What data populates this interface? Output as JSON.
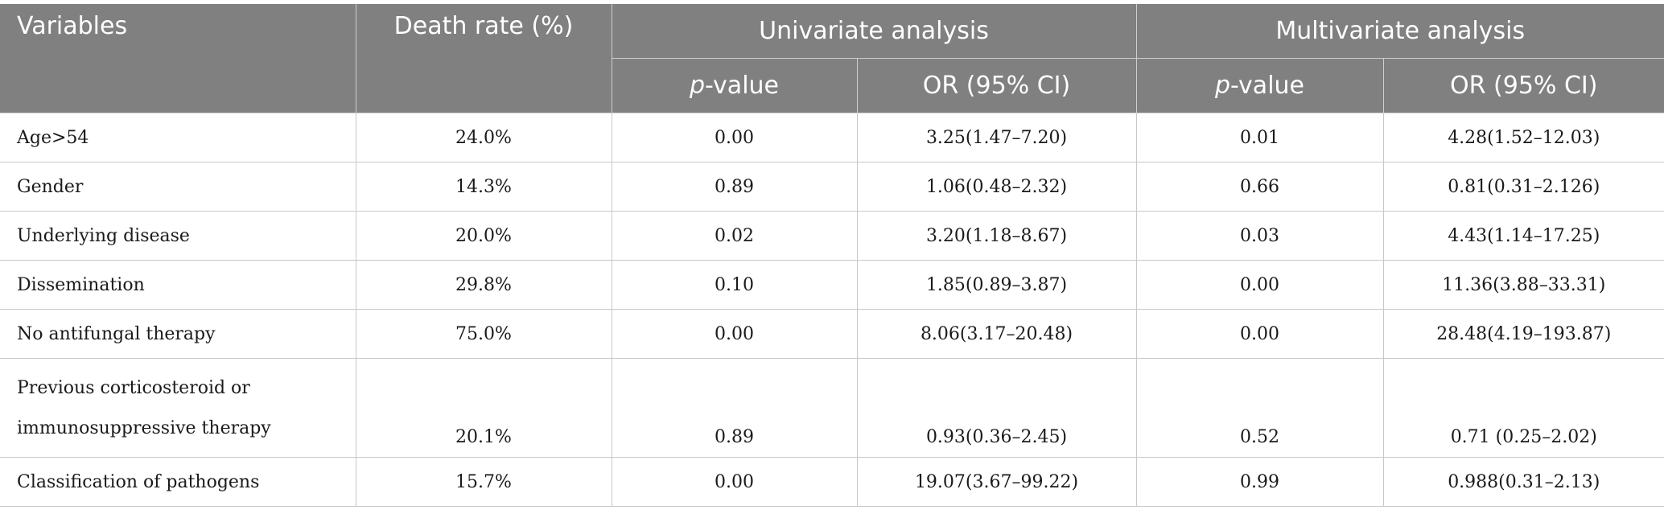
{
  "table": {
    "headers": {
      "variables": "Variables",
      "death_rate": "Death rate (%)",
      "univariate": "Univariate analysis",
      "multivariate": "Multivariate analysis",
      "p_italic": "p",
      "p_suffix": "-value",
      "or_ci": "OR (95% CI)"
    },
    "rows": [
      [
        "Age>54",
        "24.0%",
        "0.00",
        "3.25(1.47–7.20)",
        "0.01",
        "4.28(1.52–12.03)"
      ],
      [
        "Gender",
        "14.3%",
        "0.89",
        "1.06(0.48–2.32)",
        "0.66",
        "0.81(0.31–2.126)"
      ],
      [
        "Underlying disease",
        "20.0%",
        "0.02",
        "3.20(1.18–8.67)",
        "0.03",
        "4.43(1.14–17.25)"
      ],
      [
        "Dissemination",
        "29.8%",
        "0.10",
        "1.85(0.89–3.87)",
        "0.00",
        "11.36(3.88–33.31)"
      ],
      [
        "No antifungal therapy",
        "75.0%",
        "0.00",
        "8.06(3.17–20.48)",
        "0.00",
        "28.48(4.19–193.87)"
      ],
      [
        "Previous corticosteroid or immunosuppressive therapy",
        "20.1%",
        "0.89",
        "0.93(0.36–2.45)",
        "0.52",
        "0.71 (0.25–2.02)"
      ],
      [
        "Classification of pathogens",
        "15.7%",
        "0.00",
        "19.07(3.67–99.22)",
        "0.99",
        "0.988(0.31–2.13)"
      ]
    ],
    "row_labels_split": {
      "5": [
        "Previous corticosteroid or",
        "immunosuppressive therapy"
      ]
    }
  }
}
